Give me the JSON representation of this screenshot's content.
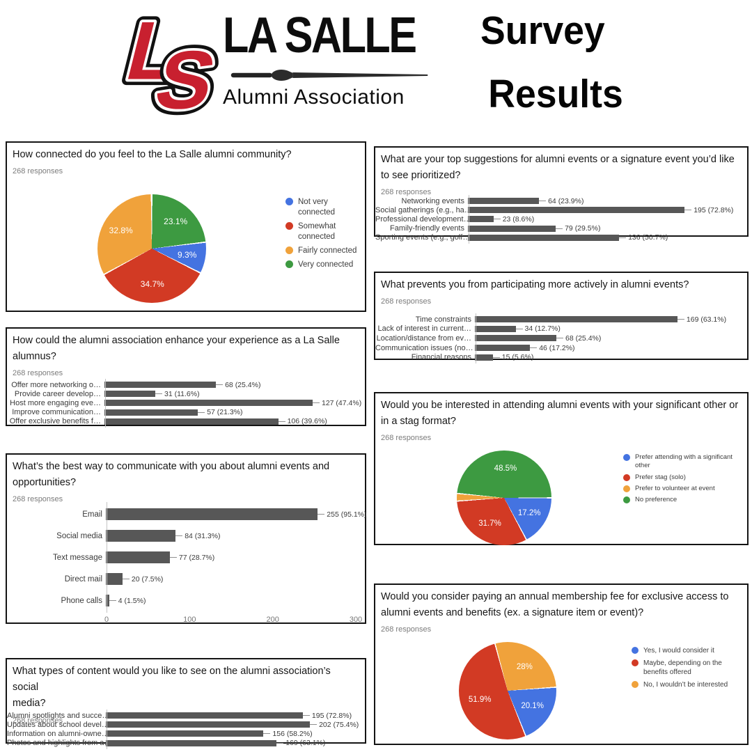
{
  "header": {
    "logo_letter_l": "L",
    "logo_letter_s": "S",
    "logo_title": "LA SALLE",
    "logo_subtitle": "Alumni Association",
    "title_line1": "Survey",
    "title_line2": "Results"
  },
  "colors": {
    "blue": "#4473e1",
    "red": "#d23a24",
    "orange": "#f0a23b",
    "green": "#3d9a41",
    "bar": "#575757",
    "logo_red": "#c8202f"
  },
  "chart_data": [
    {
      "id": "connected",
      "type": "pie",
      "title": "How connected do you feel to the La Salle alumni community?",
      "responses": "268 responses",
      "start_angle": 0,
      "legend_position": "right",
      "slices": [
        {
          "label": "Very connected",
          "pct": 23.1,
          "display": "23.1%",
          "color_key": "green"
        },
        {
          "label": "Not very connected",
          "pct": 9.3,
          "display": "9.3%",
          "color_key": "blue"
        },
        {
          "label": "Somewhat connected",
          "pct": 34.7,
          "display": "34.7%",
          "color_key": "red"
        },
        {
          "label": "Fairly connected",
          "pct": 32.8,
          "display": "32.8%",
          "color_key": "orange"
        }
      ],
      "legend": [
        {
          "label": "Not very connected",
          "color_key": "blue"
        },
        {
          "label": "Somewhat connected",
          "color_key": "red"
        },
        {
          "label": "Fairly connected",
          "color_key": "orange"
        },
        {
          "label": "Very connected",
          "color_key": "green"
        }
      ]
    },
    {
      "id": "enhance",
      "type": "bar",
      "title": "How could the alumni association enhance your experience as a La Salle\nalumnus?",
      "responses": "268 responses",
      "axis_max": 158,
      "rows": [
        {
          "label": "Offer more networking o…",
          "value": 68,
          "display": "68 (25.4%)"
        },
        {
          "label": "Provide career develop…",
          "value": 31,
          "display": "31 (11.6%)"
        },
        {
          "label": "Host more engaging eve…",
          "value": 127,
          "display": "127 (47.4%)"
        },
        {
          "label": "Improve communication…",
          "value": 57,
          "display": "57 (21.3%)"
        },
        {
          "label": "Offer exclusive benefits f…",
          "value": 106,
          "display": "106 (39.6%)"
        }
      ]
    },
    {
      "id": "communicate",
      "type": "bar",
      "title": "What’s the best way to communicate with you about alumni events and\nopportunities?",
      "responses": "268 responses",
      "axis_max": 300,
      "x_ticks": [
        0,
        100,
        200,
        300
      ],
      "rows": [
        {
          "label": "Email",
          "value": 255,
          "display": "255 (95.1%)"
        },
        {
          "label": "Social media",
          "value": 84,
          "display": "84 (31.3%)"
        },
        {
          "label": "Text message",
          "value": 77,
          "display": "77 (28.7%)"
        },
        {
          "label": "Direct mail",
          "value": 20,
          "display": "20 (7.5%)"
        },
        {
          "label": "Phone calls",
          "value": 4,
          "display": "4 (1.5%)"
        }
      ]
    },
    {
      "id": "content",
      "type": "bar",
      "title": "What types of content would you like to see on the alumni association’s social\nmedia?",
      "responses": "268 responses",
      "axis_max": 255,
      "rows": [
        {
          "label": "Alumni spotlights and succe…",
          "value": 195,
          "display": "195 (72.8%)"
        },
        {
          "label": "Updates about school devel…",
          "value": 202,
          "display": "202 (75.4%)"
        },
        {
          "label": "Information on alumni-owne…",
          "value": 156,
          "display": "156 (58.2%)"
        },
        {
          "label": "Photos and highlights from a…",
          "value": 169,
          "display": "169 (63.1%)"
        }
      ]
    },
    {
      "id": "suggestions",
      "type": "bar",
      "title": "What are your top suggestions for alumni events or a signature event you’d like\nto see prioritized?",
      "responses": "268 responses",
      "axis_max": 250,
      "rows": [
        {
          "label": "Networking events",
          "value": 64,
          "display": "64 (23.9%)"
        },
        {
          "label": "Social gatherings (e.g., ha…",
          "value": 195,
          "display": "195 (72.8%)"
        },
        {
          "label": "Professional development…",
          "value": 23,
          "display": "23 (8.6%)"
        },
        {
          "label": "Family-friendly events",
          "value": 79,
          "display": "79 (29.5%)"
        },
        {
          "label": "Sporting events (e.g., golf…",
          "value": 136,
          "display": "136 (50.7%)"
        }
      ]
    },
    {
      "id": "prevents",
      "type": "bar",
      "title": "What prevents you from participating more actively in alumni events?",
      "responses": "268 responses",
      "axis_max": 226,
      "rows": [
        {
          "label": "Time constraints",
          "value": 169,
          "display": "169 (63.1%)"
        },
        {
          "label": "Lack of interest in current…",
          "value": 34,
          "display": "34 (12.7%)"
        },
        {
          "label": "Location/distance from ev…",
          "value": 68,
          "display": "68 (25.4%)"
        },
        {
          "label": "Communication issues (no…",
          "value": 46,
          "display": "46 (17.2%)"
        },
        {
          "label": "Financial reasons",
          "value": 15,
          "display": "15 (5.6%)"
        }
      ]
    },
    {
      "id": "stag",
      "type": "pie",
      "title": "Would you be interested in attending alumni events with your significant other or\nin a stag format?",
      "responses": "268 responses",
      "start_angle": 275.4,
      "legend_position": "right",
      "slices": [
        {
          "label": "No preference",
          "pct": 48.5,
          "display": "48.5%",
          "color_key": "green"
        },
        {
          "label": "Prefer attending with a significant other",
          "pct": 17.2,
          "display": "17.2%",
          "color_key": "blue"
        },
        {
          "label": "Prefer stag (solo)",
          "pct": 31.7,
          "display": "31.7%",
          "color_key": "red"
        },
        {
          "label": "Prefer to volunteer at event",
          "pct": 2.6,
          "display": "",
          "color_key": "orange"
        }
      ],
      "legend": [
        {
          "label": "Prefer attending with a significant other",
          "color_key": "blue"
        },
        {
          "label": "Prefer stag (solo)",
          "color_key": "red"
        },
        {
          "label": "Prefer to volunteer at event",
          "color_key": "orange"
        },
        {
          "label": "No preference",
          "color_key": "green"
        }
      ]
    },
    {
      "id": "membership",
      "type": "pie",
      "title": "Would you consider paying an annual membership fee for exclusive access to\nalumni events and benefits (ex. a signature item or event)?",
      "responses": "268 responses",
      "start_angle": 345,
      "legend_position": "right",
      "slices": [
        {
          "label": "No, I wouldn’t be interested",
          "pct": 28,
          "display": "28%",
          "color_key": "orange"
        },
        {
          "label": "Yes, I would consider it",
          "pct": 20.1,
          "display": "20.1%",
          "color_key": "blue"
        },
        {
          "label": "Maybe, depending on the benefits offered",
          "pct": 51.9,
          "display": "51.9%",
          "color_key": "red"
        }
      ],
      "legend": [
        {
          "label": "Yes, I would consider it",
          "color_key": "blue"
        },
        {
          "label": "Maybe, depending on the benefits offered",
          "color_key": "red"
        },
        {
          "label": "No, I wouldn’t be interested",
          "color_key": "orange"
        }
      ]
    }
  ]
}
